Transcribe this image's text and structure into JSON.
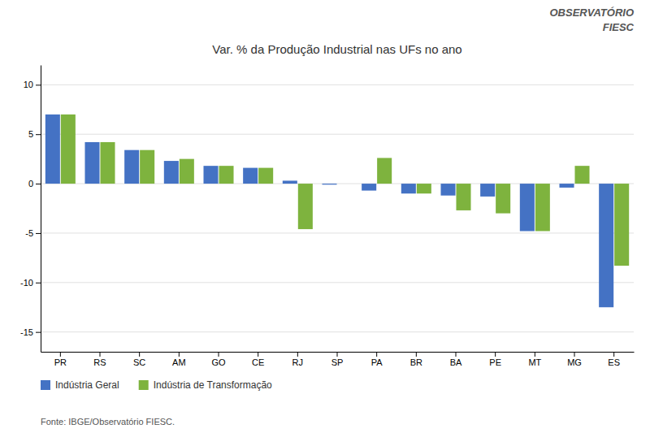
{
  "chart_data": {
    "type": "bar",
    "title": "Var. % da Produção Industrial nas UFs no ano",
    "categories": [
      "PR",
      "RS",
      "SC",
      "AM",
      "GO",
      "CE",
      "RJ",
      "SP",
      "PA",
      "BR",
      "BA",
      "PE",
      "MT",
      "MG",
      "ES"
    ],
    "series": [
      {
        "name": "Indústria Geral",
        "color": "#4472C4",
        "values": [
          7.0,
          4.2,
          3.4,
          2.3,
          1.8,
          1.6,
          0.3,
          -0.1,
          -0.7,
          -1.0,
          -1.2,
          -1.3,
          -4.8,
          -0.4,
          -12.5
        ]
      },
      {
        "name": "Indústria de Transformação",
        "color": "#7EB33E",
        "values": [
          7.0,
          4.2,
          3.4,
          2.5,
          1.8,
          1.6,
          -4.6,
          0.0,
          2.6,
          -1.0,
          -2.7,
          -3.0,
          -4.8,
          1.8,
          -8.3
        ]
      }
    ],
    "ylim": [
      -17,
      12
    ],
    "yticks": [
      -15,
      -10,
      -5,
      0,
      5,
      10
    ],
    "grid": true,
    "legend": "bottom",
    "annotations": [
      "OBSERVATÓRIO",
      "FIESC",
      "Fonte: IBGE/Observatório FIESC."
    ]
  }
}
